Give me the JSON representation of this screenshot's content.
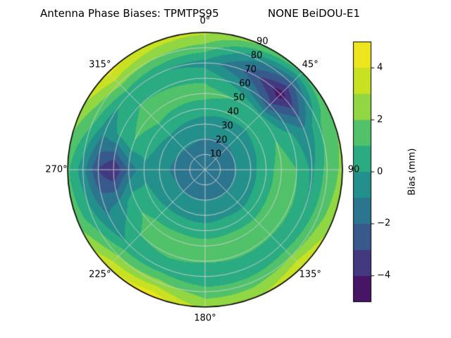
{
  "title": {
    "left": "Antenna Phase Biases: TPMTPS95",
    "right": "NONE BeiDOU-E1"
  },
  "chart_data": {
    "type": "heatmap",
    "projection": "polar",
    "theta_zero_location": "top",
    "theta_direction": "clockwise",
    "theta_ticks_deg": [
      0,
      45,
      90,
      135,
      180,
      225,
      270,
      315
    ],
    "theta_tick_labels": [
      "0°",
      "45°",
      "90",
      "135°",
      "180°",
      "225°",
      "270°",
      "315°"
    ],
    "r_ticks": [
      10,
      20,
      30,
      40,
      50,
      60,
      70,
      80,
      90
    ],
    "r_max": 90,
    "grid_color": "#d0d0d0",
    "colormap": {
      "name": "viridis",
      "stops": [
        [
          0.0,
          "#440154"
        ],
        [
          0.1,
          "#482878"
        ],
        [
          0.2,
          "#3e4a89"
        ],
        [
          0.3,
          "#31688e"
        ],
        [
          0.4,
          "#26828e"
        ],
        [
          0.5,
          "#1f9e89"
        ],
        [
          0.6,
          "#35b779"
        ],
        [
          0.7,
          "#6dcd59"
        ],
        [
          0.8,
          "#b4de2c"
        ],
        [
          0.9,
          "#dde318"
        ],
        [
          1.0,
          "#fde725"
        ]
      ]
    },
    "colorbar": {
      "label": "Bias (mm)",
      "vmin": -5,
      "vmax": 5,
      "band_step": 1,
      "ticks": [
        {
          "value": -4,
          "label": "−4"
        },
        {
          "value": -2,
          "label": "−2"
        },
        {
          "value": 0,
          "label": "0"
        },
        {
          "value": 2,
          "label": "2"
        },
        {
          "value": 4,
          "label": "4"
        }
      ]
    },
    "azimuth_deg": [
      0,
      22.5,
      45,
      67.5,
      90,
      112.5,
      135,
      157.5,
      180,
      202.5,
      225,
      247.5,
      270,
      292.5,
      315,
      337.5
    ],
    "zenith_deg": [
      0,
      10,
      20,
      30,
      40,
      50,
      60,
      70,
      80,
      90
    ],
    "values_mm": [
      [
        -2.0,
        -1.6,
        -1.0,
        -0.4,
        0.4,
        1.4,
        0.8,
        -0.4,
        1.6,
        3.2
      ],
      [
        -2.0,
        -1.6,
        -1.1,
        -0.5,
        0.3,
        1.0,
        -0.5,
        -2.2,
        -0.5,
        2.2
      ],
      [
        -2.0,
        -1.6,
        -1.1,
        -0.5,
        0.2,
        0.4,
        -2.8,
        -4.6,
        -2.2,
        1.2
      ],
      [
        -2.0,
        -1.6,
        -1.0,
        -0.4,
        0.4,
        1.0,
        0.2,
        -1.0,
        0.8,
        2.0
      ],
      [
        -2.0,
        -1.6,
        -1.0,
        -0.3,
        0.5,
        1.5,
        1.0,
        -0.2,
        1.4,
        2.2
      ],
      [
        -2.0,
        -1.6,
        -1.0,
        -0.3,
        0.5,
        1.6,
        1.2,
        0.0,
        1.6,
        2.6
      ],
      [
        -2.0,
        -1.6,
        -1.0,
        -0.4,
        0.4,
        1.5,
        1.1,
        0.2,
        2.0,
        4.2
      ],
      [
        -2.0,
        -1.6,
        -1.0,
        -0.3,
        0.5,
        1.6,
        1.2,
        0.0,
        1.6,
        2.8
      ],
      [
        -2.0,
        -1.6,
        -1.0,
        -0.4,
        0.4,
        1.5,
        1.1,
        0.0,
        1.5,
        2.6
      ],
      [
        -2.0,
        -1.6,
        -1.0,
        -0.4,
        0.5,
        1.6,
        1.2,
        0.4,
        2.4,
        4.7
      ],
      [
        -2.0,
        -1.6,
        -1.0,
        -0.4,
        0.4,
        1.4,
        1.0,
        0.2,
        2.0,
        4.0
      ],
      [
        -2.0,
        -1.6,
        -1.0,
        -0.5,
        0.2,
        0.6,
        -0.6,
        -1.2,
        0.4,
        1.6
      ],
      [
        -2.0,
        -1.7,
        -1.2,
        -0.6,
        -0.2,
        -1.8,
        -4.2,
        -3.0,
        -0.6,
        1.2
      ],
      [
        -2.0,
        -1.6,
        -1.0,
        -0.4,
        0.4,
        1.0,
        0.2,
        -0.6,
        1.2,
        2.4
      ],
      [
        -2.0,
        -1.5,
        -0.9,
        -0.2,
        0.8,
        1.5,
        1.0,
        0.4,
        2.4,
        4.4
      ],
      [
        -2.0,
        -1.5,
        -0.9,
        -0.3,
        0.6,
        1.4,
        0.9,
        0.0,
        2.0,
        3.6
      ]
    ]
  }
}
